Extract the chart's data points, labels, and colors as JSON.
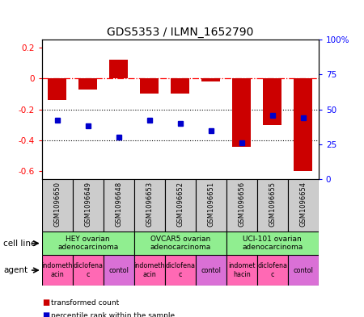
{
  "title": "GDS5353 / ILMN_1652790",
  "samples": [
    "GSM1096650",
    "GSM1096649",
    "GSM1096648",
    "GSM1096653",
    "GSM1096652",
    "GSM1096651",
    "GSM1096656",
    "GSM1096655",
    "GSM1096654"
  ],
  "red_values": [
    -0.14,
    -0.07,
    0.12,
    -0.1,
    -0.1,
    -0.02,
    -0.44,
    -0.3,
    -0.6
  ],
  "blue_percentile": [
    42,
    38,
    30,
    42,
    40,
    35,
    26,
    46,
    44
  ],
  "ylim_left": [
    -0.65,
    0.25
  ],
  "ylim_right": [
    0,
    100
  ],
  "yticks_left": [
    0.2,
    0.0,
    -0.2,
    -0.4,
    -0.6
  ],
  "ytick_left_labels": [
    "0.2",
    "0",
    "-0.2",
    "-0.4",
    "-0.6"
  ],
  "yticks_right": [
    0,
    25,
    50,
    75,
    100
  ],
  "ytick_right_labels": [
    "0",
    "25",
    "50",
    "75",
    "100%"
  ],
  "cell_lines": [
    {
      "label": "HEY ovarian\nadenocarcinoma",
      "start": 0,
      "end": 3,
      "color": "#90EE90"
    },
    {
      "label": "OVCAR5 ovarian\nadenocarcinoma",
      "start": 3,
      "end": 6,
      "color": "#90EE90"
    },
    {
      "label": "UCI-101 ovarian\nadenocarcinoma",
      "start": 6,
      "end": 9,
      "color": "#90EE90"
    }
  ],
  "agents": [
    {
      "label": "indometh\nacin",
      "start": 0,
      "end": 1,
      "color": "#FF69B4"
    },
    {
      "label": "diclofena\nc",
      "start": 1,
      "end": 2,
      "color": "#FF69B4"
    },
    {
      "label": "contol",
      "start": 2,
      "end": 3,
      "color": "#DA70D6"
    },
    {
      "label": "indometh\nacin",
      "start": 3,
      "end": 4,
      "color": "#FF69B4"
    },
    {
      "label": "diclofena\nc",
      "start": 4,
      "end": 5,
      "color": "#FF69B4"
    },
    {
      "label": "contol",
      "start": 5,
      "end": 6,
      "color": "#DA70D6"
    },
    {
      "label": "indomet\nhacin",
      "start": 6,
      "end": 7,
      "color": "#FF69B4"
    },
    {
      "label": "diclofena\nc",
      "start": 7,
      "end": 8,
      "color": "#FF69B4"
    },
    {
      "label": "contol",
      "start": 8,
      "end": 9,
      "color": "#DA70D6"
    }
  ],
  "bar_color": "#CC0000",
  "dot_color": "#0000CC",
  "bg_color": "#FFFFFF",
  "sample_box_color": "#CCCCCC",
  "cell_line_label": "cell line",
  "agent_label": "agent",
  "legend_red": "transformed count",
  "legend_blue": "percentile rank within the sample",
  "bar_width": 0.6,
  "dot_size": 5,
  "n_samples": 9
}
